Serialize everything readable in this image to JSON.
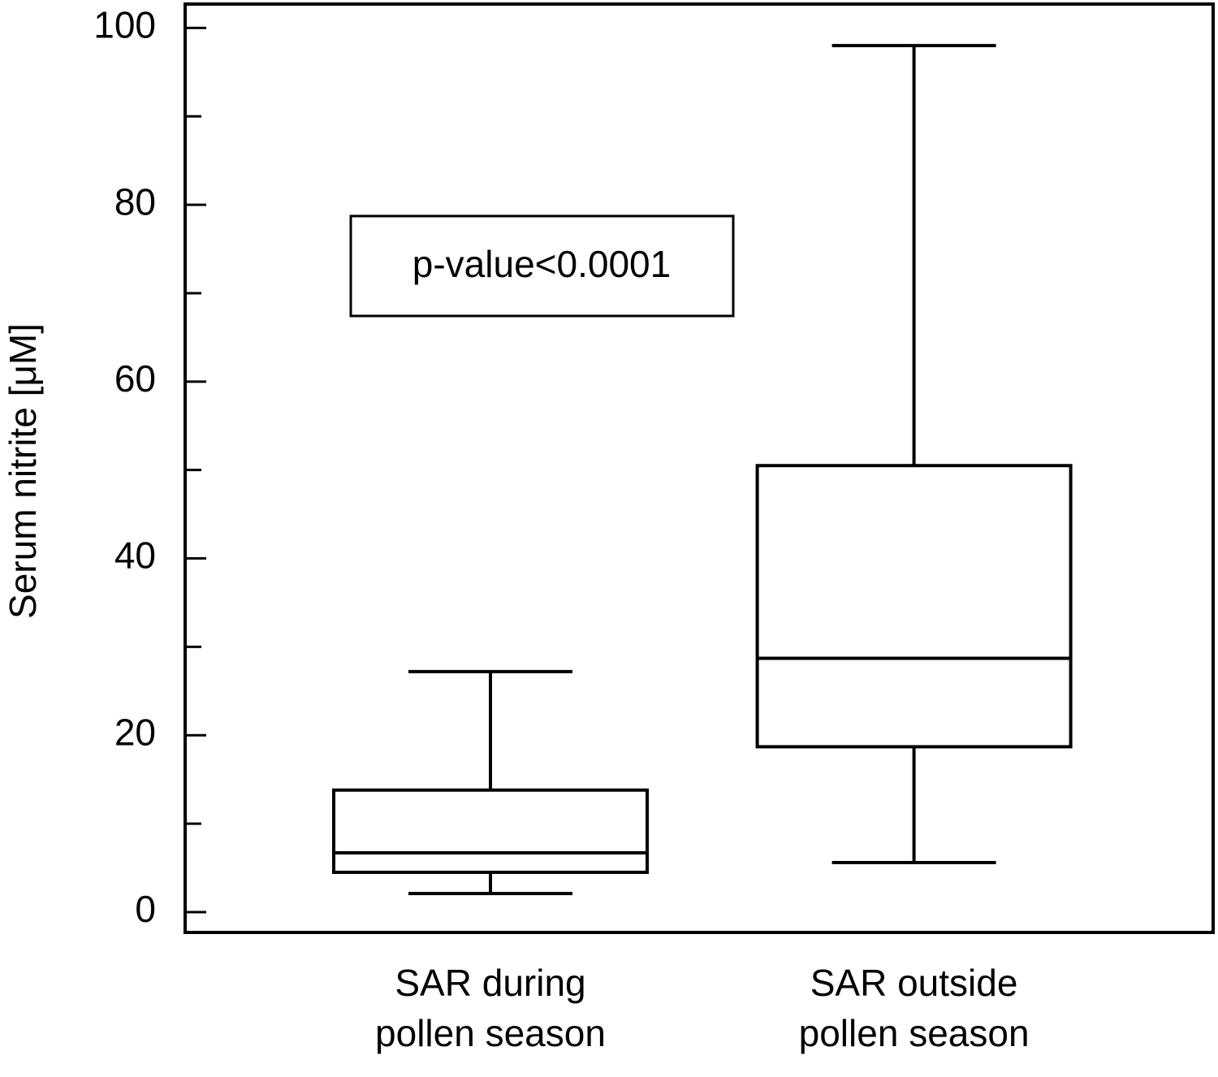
{
  "chart_data": {
    "type": "box",
    "y_label": "Serum nitrite [μM]",
    "categories": [
      [
        "SAR during",
        "pollen season"
      ],
      [
        "SAR outside",
        "pollen season"
      ]
    ],
    "boxes": [
      {
        "min": 2.1,
        "q1": 4.5,
        "median": 6.7,
        "q3": 13.8,
        "max": 27.2
      },
      {
        "min": 5.6,
        "q1": 18.7,
        "median": 28.7,
        "q3": 50.5,
        "max": 98.0
      }
    ],
    "annotation": "p-value<0.0001",
    "ylim": [
      -2.3,
      102.7
    ],
    "yticks": [
      0,
      20,
      40,
      60,
      80,
      100
    ],
    "minor_yticks": [
      10,
      30,
      50,
      70,
      90
    ],
    "color": "#000000"
  }
}
